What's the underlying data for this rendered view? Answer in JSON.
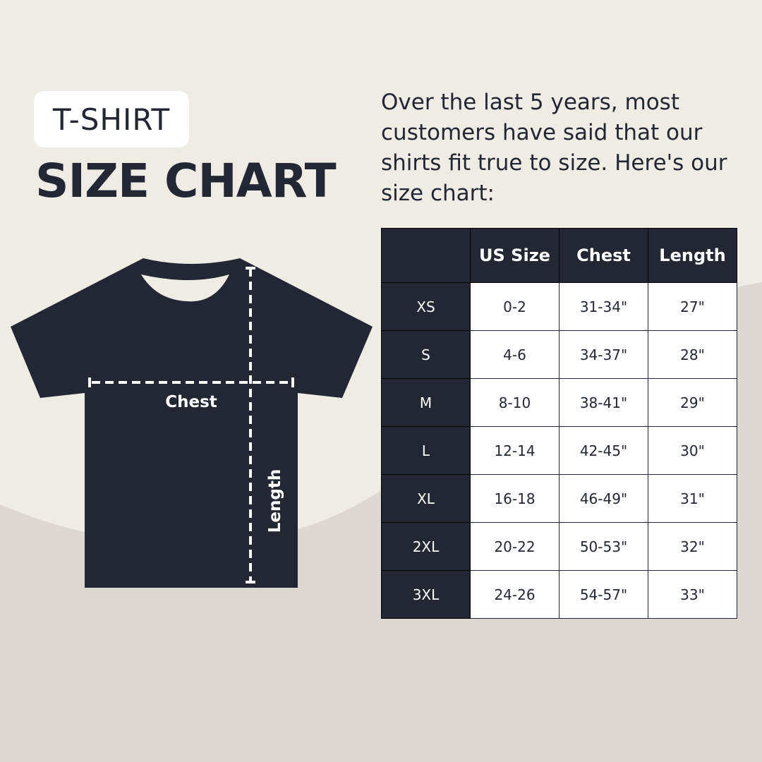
{
  "badge": "T-SHIRT",
  "title": "SIZE CHART",
  "intro": "Over the last 5 years, most customers have said that our shirts fit true to size. Here's our size chart:",
  "diagram": {
    "chest_label": "Chest",
    "length_label": "Length"
  },
  "colors": {
    "dark": "#232733",
    "background_light": "#efebe5",
    "background_dark": "#ddd8d1"
  },
  "table": {
    "headers": [
      "",
      "US Size",
      "Chest",
      "Length"
    ],
    "rows": [
      [
        "XS",
        "0-2",
        "31-34\"",
        "27\""
      ],
      [
        "S",
        "4-6",
        "34-37\"",
        "28\""
      ],
      [
        "M",
        "8-10",
        "38-41\"",
        "29\""
      ],
      [
        "L",
        "12-14",
        "42-45\"",
        "30\""
      ],
      [
        "XL",
        "16-18",
        "46-49\"",
        "31\""
      ],
      [
        "2XL",
        "20-22",
        "50-53\"",
        "32\""
      ],
      [
        "3XL",
        "24-26",
        "54-57\"",
        "33\""
      ]
    ]
  }
}
